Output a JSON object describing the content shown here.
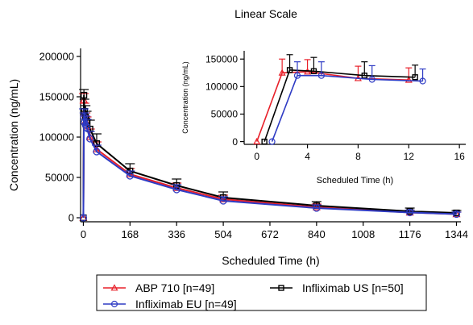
{
  "figure_title": "Linear Scale",
  "legend": {
    "items": [
      {
        "label": "ABP 710 [n=49]",
        "color": "#e8202a",
        "marker": "triangle"
      },
      {
        "label": "Infliximab US [n=50]",
        "color": "#000000",
        "marker": "square"
      },
      {
        "label": "Infliximab EU [n=49]",
        "color": "#2e3bc4",
        "marker": "circle"
      }
    ]
  },
  "chart_data": [
    {
      "type": "line",
      "panel": "main",
      "xlabel": "Scheduled Time (h)",
      "ylabel": "Concentration (ng/mL)",
      "xlim": [
        -10,
        1360
      ],
      "ylim": [
        -5000,
        210000
      ],
      "x_ticks": [
        0,
        168,
        336,
        504,
        672,
        840,
        1008,
        1176,
        1344
      ],
      "y_ticks": [
        0,
        50000,
        100000,
        150000,
        200000
      ],
      "y_tick_labels": [
        "0",
        "50000",
        "100000",
        "150000",
        "200000"
      ],
      "grid": false,
      "series": [
        {
          "name": "ABP 710 [n=49]",
          "color": "#e8202a",
          "marker": "triangle",
          "x": [
            0,
            2,
            4,
            8,
            12,
            24,
            48,
            168,
            336,
            504,
            840,
            1176,
            1344
          ],
          "y": [
            0,
            146000,
            130000,
            120000,
            115000,
            100000,
            85000,
            54000,
            37000,
            23000,
            13000,
            6500,
            4500
          ],
          "err": [
            0,
            8000,
            12000,
            10000,
            10000,
            10000,
            9000,
            7000,
            6000,
            5000,
            4000,
            3000,
            2500
          ]
        },
        {
          "name": "Infliximab US [n=50]",
          "color": "#000000",
          "marker": "square",
          "x": [
            0,
            2,
            4,
            8,
            12,
            24,
            48,
            168,
            336,
            504,
            840,
            1176,
            1344
          ],
          "y": [
            0,
            152000,
            132000,
            125000,
            120000,
            110000,
            92000,
            58000,
            40000,
            25000,
            15000,
            8000,
            6000
          ],
          "err": [
            0,
            7000,
            15000,
            14000,
            12000,
            11000,
            12000,
            9000,
            8000,
            7000,
            5000,
            4000,
            3000
          ]
        },
        {
          "name": "Infliximab EU [n=49]",
          "color": "#2e3bc4",
          "marker": "circle",
          "x": [
            0,
            2,
            4,
            8,
            12,
            24,
            48,
            168,
            336,
            504,
            840,
            1176,
            1344
          ],
          "y": [
            0,
            125000,
            118000,
            115000,
            112000,
            98000,
            82000,
            52000,
            35000,
            21000,
            12000,
            6500,
            4500
          ],
          "err": [
            0,
            10000,
            12000,
            11000,
            10000,
            9000,
            8000,
            6000,
            6000,
            5000,
            4000,
            3000,
            2500
          ]
        }
      ]
    },
    {
      "type": "line",
      "panel": "inset",
      "xlabel": "Scheduled Time (h)",
      "ylabel": "Concentration (ng/mL)",
      "xlim": [
        -1,
        16.5
      ],
      "ylim": [
        -5000,
        165000
      ],
      "x_ticks": [
        0,
        4,
        8,
        12,
        16
      ],
      "y_ticks": [
        0,
        50000,
        100000,
        150000
      ],
      "y_tick_labels": [
        "0",
        "50000",
        "100000",
        "150000"
      ],
      "grid": false,
      "series": [
        {
          "name": "ABP 710 [n=49]",
          "color": "#e8202a",
          "marker": "triangle",
          "x": [
            0,
            2,
            4,
            8,
            12
          ],
          "y": [
            0,
            125000,
            127000,
            115000,
            112000
          ],
          "err": [
            0,
            25000,
            22000,
            22000,
            22000
          ]
        },
        {
          "name": "Infliximab US [n=50]",
          "color": "#000000",
          "marker": "square",
          "x": [
            0.6,
            2.6,
            4.5,
            8.5,
            12.5
          ],
          "y": [
            0,
            130000,
            128000,
            120000,
            117000
          ],
          "err": [
            0,
            28000,
            25000,
            25000,
            22000
          ]
        },
        {
          "name": "Infliximab EU [n=49]",
          "color": "#2e3bc4",
          "marker": "circle",
          "x": [
            1.2,
            3.2,
            5.1,
            9.1,
            13.1
          ],
          "y": [
            0,
            120000,
            120000,
            113000,
            110000
          ],
          "err": [
            0,
            25000,
            25000,
            25000,
            22000
          ]
        }
      ]
    }
  ]
}
